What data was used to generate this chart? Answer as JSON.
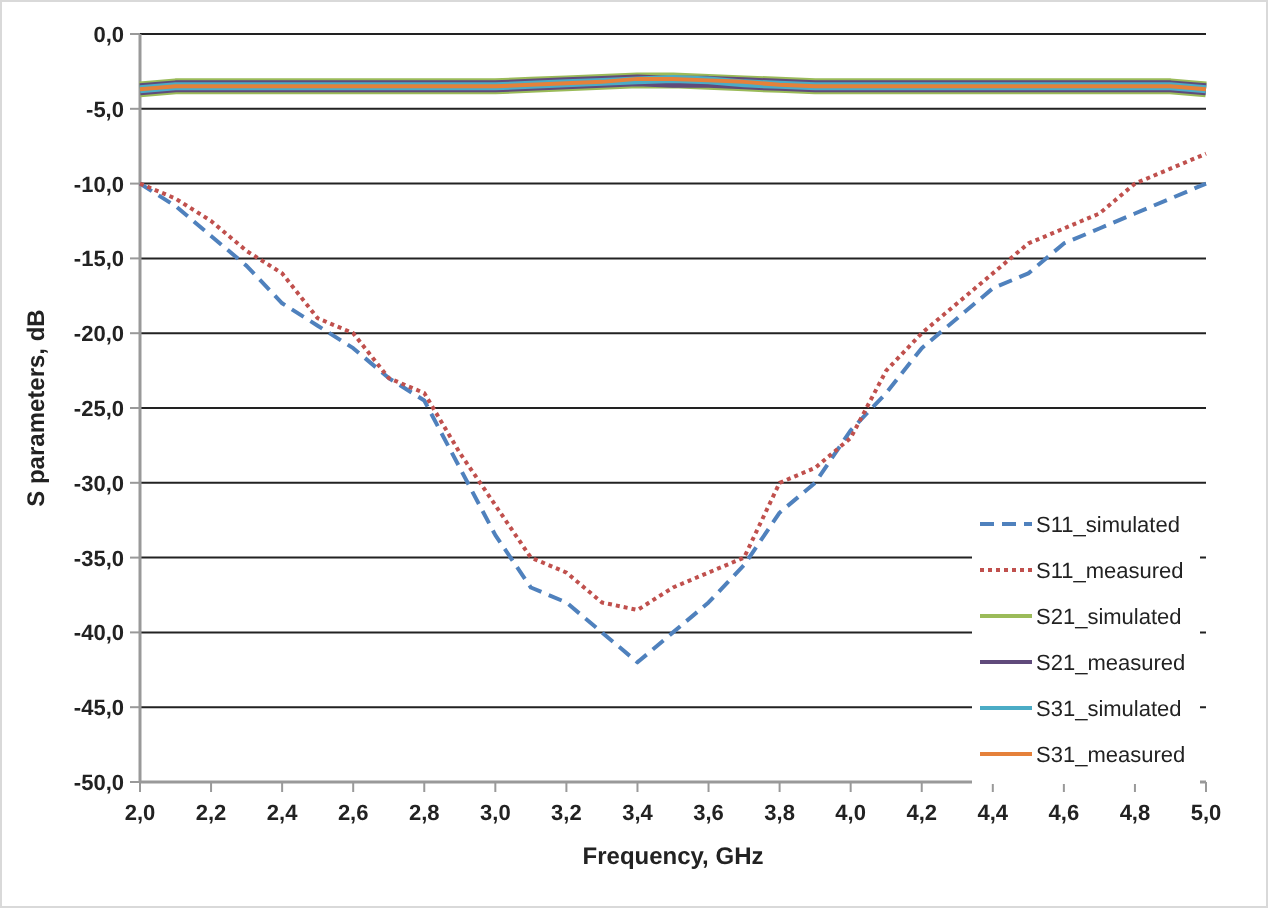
{
  "chart_data": {
    "type": "line",
    "xlabel": "Frequency, GHz",
    "ylabel": "S parameters, dB",
    "x": [
      2.0,
      2.1,
      2.2,
      2.3,
      2.4,
      2.5,
      2.6,
      2.7,
      2.8,
      2.9,
      3.0,
      3.1,
      3.2,
      3.3,
      3.4,
      3.5,
      3.6,
      3.7,
      3.8,
      3.9,
      4.0,
      4.1,
      4.2,
      4.3,
      4.4,
      4.5,
      4.6,
      4.7,
      4.8,
      4.9,
      5.0
    ],
    "xlim": [
      2,
      5
    ],
    "ylim": [
      -50,
      0
    ],
    "xticks": [
      {
        "value": 2,
        "label": "2,0"
      },
      {
        "value": 2.2,
        "label": "2,2"
      },
      {
        "value": 2.4,
        "label": "2,4"
      },
      {
        "value": 2.6,
        "label": "2,6"
      },
      {
        "value": 2.8,
        "label": "2,8"
      },
      {
        "value": 3,
        "label": "3,0"
      },
      {
        "value": 3.2,
        "label": "3,2"
      },
      {
        "value": 3.4,
        "label": "3,4"
      },
      {
        "value": 3.6,
        "label": "3,6"
      },
      {
        "value": 3.8,
        "label": "3,8"
      },
      {
        "value": 4,
        "label": "4,0"
      },
      {
        "value": 4.2,
        "label": "4,2"
      },
      {
        "value": 4.4,
        "label": "4,4"
      },
      {
        "value": 4.6,
        "label": "4,6"
      },
      {
        "value": 4.8,
        "label": "4,8"
      },
      {
        "value": 5,
        "label": "5,0"
      }
    ],
    "yticks": [
      {
        "value": 0,
        "label": "0,0"
      },
      {
        "value": -5,
        "label": "-5,0"
      },
      {
        "value": -10,
        "label": "-10,0"
      },
      {
        "value": -15,
        "label": "-15,0"
      },
      {
        "value": -20,
        "label": "-20,0"
      },
      {
        "value": -25,
        "label": "-25,0"
      },
      {
        "value": -30,
        "label": "-30,0"
      },
      {
        "value": -35,
        "label": "-35,0"
      },
      {
        "value": -40,
        "label": "-40,0"
      },
      {
        "value": -45,
        "label": "-45,0"
      },
      {
        "value": -50,
        "label": "-50,0"
      }
    ],
    "grid": "y",
    "legend": "right",
    "marker": "none",
    "series": [
      {
        "name": "S11_simulated",
        "color": "#4f81bd",
        "line_style": "dashed",
        "values": [
          -10,
          -11.5,
          -13.5,
          -15.5,
          -18,
          -19.5,
          -21,
          -23,
          -24.5,
          -29,
          -33.5,
          -37,
          -38,
          -40,
          -42,
          -40,
          -38,
          -35.5,
          -32,
          -30,
          -26.5,
          -24,
          -21,
          -19,
          -17,
          -16,
          -14,
          -13,
          -12,
          -11,
          -10
        ]
      },
      {
        "name": "S11_measured",
        "color": "#c0504d",
        "line_style": "dotted",
        "values": [
          -10,
          -11,
          -12.5,
          -14.5,
          -16,
          -19,
          -20,
          -23,
          -24,
          -28,
          -31.5,
          -35,
          -36,
          -38,
          -38.5,
          -37,
          -36,
          -35,
          -30,
          -29,
          -27,
          -22.5,
          -20,
          -18,
          -16,
          -14,
          -13,
          -12,
          -10,
          -9,
          -8
        ]
      },
      {
        "name": "S21_simulated",
        "color": "#9bbb59",
        "line_style": "solid",
        "values": [
          -3.7,
          -3.5,
          -3.5,
          -3.5,
          -3.5,
          -3.5,
          -3.5,
          -3.5,
          -3.5,
          -3.5,
          -3.5,
          -3.4,
          -3.3,
          -3.2,
          -3.1,
          -3.1,
          -3.2,
          -3.3,
          -3.4,
          -3.5,
          -3.5,
          -3.5,
          -3.5,
          -3.5,
          -3.5,
          -3.5,
          -3.5,
          -3.5,
          -3.5,
          -3.5,
          -3.7
        ]
      },
      {
        "name": "S21_measured",
        "color": "#604a7b",
        "line_style": "solid",
        "values": [
          -3.7,
          -3.5,
          -3.5,
          -3.5,
          -3.5,
          -3.5,
          -3.5,
          -3.5,
          -3.5,
          -3.5,
          -3.5,
          -3.4,
          -3.3,
          -3.2,
          -3.1,
          -3.2,
          -3.2,
          -3.3,
          -3.4,
          -3.5,
          -3.5,
          -3.5,
          -3.5,
          -3.5,
          -3.5,
          -3.5,
          -3.5,
          -3.5,
          -3.5,
          -3.5,
          -3.7
        ]
      },
      {
        "name": "S31_simulated",
        "color": "#4bacc6",
        "line_style": "solid",
        "values": [
          -3.7,
          -3.5,
          -3.5,
          -3.5,
          -3.5,
          -3.5,
          -3.5,
          -3.5,
          -3.5,
          -3.5,
          -3.5,
          -3.4,
          -3.3,
          -3.2,
          -3.1,
          -3.0,
          -3.1,
          -3.3,
          -3.4,
          -3.5,
          -3.5,
          -3.5,
          -3.5,
          -3.5,
          -3.5,
          -3.5,
          -3.5,
          -3.5,
          -3.5,
          -3.5,
          -3.7
        ]
      },
      {
        "name": "S31_measured",
        "color": "#e5813a",
        "line_style": "solid",
        "values": [
          -3.7,
          -3.5,
          -3.5,
          -3.5,
          -3.5,
          -3.5,
          -3.5,
          -3.5,
          -3.5,
          -3.5,
          -3.5,
          -3.4,
          -3.3,
          -3.2,
          -3.0,
          -3.0,
          -3.1,
          -3.2,
          -3.4,
          -3.5,
          -3.5,
          -3.5,
          -3.5,
          -3.5,
          -3.5,
          -3.5,
          -3.5,
          -3.5,
          -3.5,
          -3.5,
          -3.7
        ]
      }
    ]
  }
}
